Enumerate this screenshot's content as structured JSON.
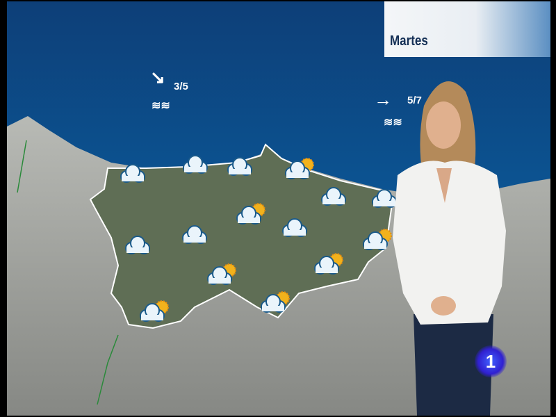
{
  "day_label": "Martes",
  "sea_forecasts": [
    {
      "wind_direction": "southeast",
      "wave_height": "3/5",
      "sea_state_icon": "waves-icon"
    },
    {
      "wind_direction": "east",
      "wave_height": "5/7",
      "sea_state_icon": "waves-icon"
    }
  ],
  "weather_icons": [
    "cloudy",
    "cloudy",
    "cloudy",
    "partly-cloudy",
    "cloudy",
    "partly-cloudy",
    "cloudy",
    "cloudy",
    "cloudy",
    "cloudy",
    "partly-cloudy",
    "partly-cloudy",
    "partly-cloudy",
    "partly-cloudy",
    "partly-cloudy"
  ],
  "channel_logo": "1",
  "colors": {
    "sea": "#0c5a9a",
    "land": "#9a9c98",
    "region": "#5f6e55",
    "title_text": "#142f55",
    "logo": "#3a3ae0"
  }
}
